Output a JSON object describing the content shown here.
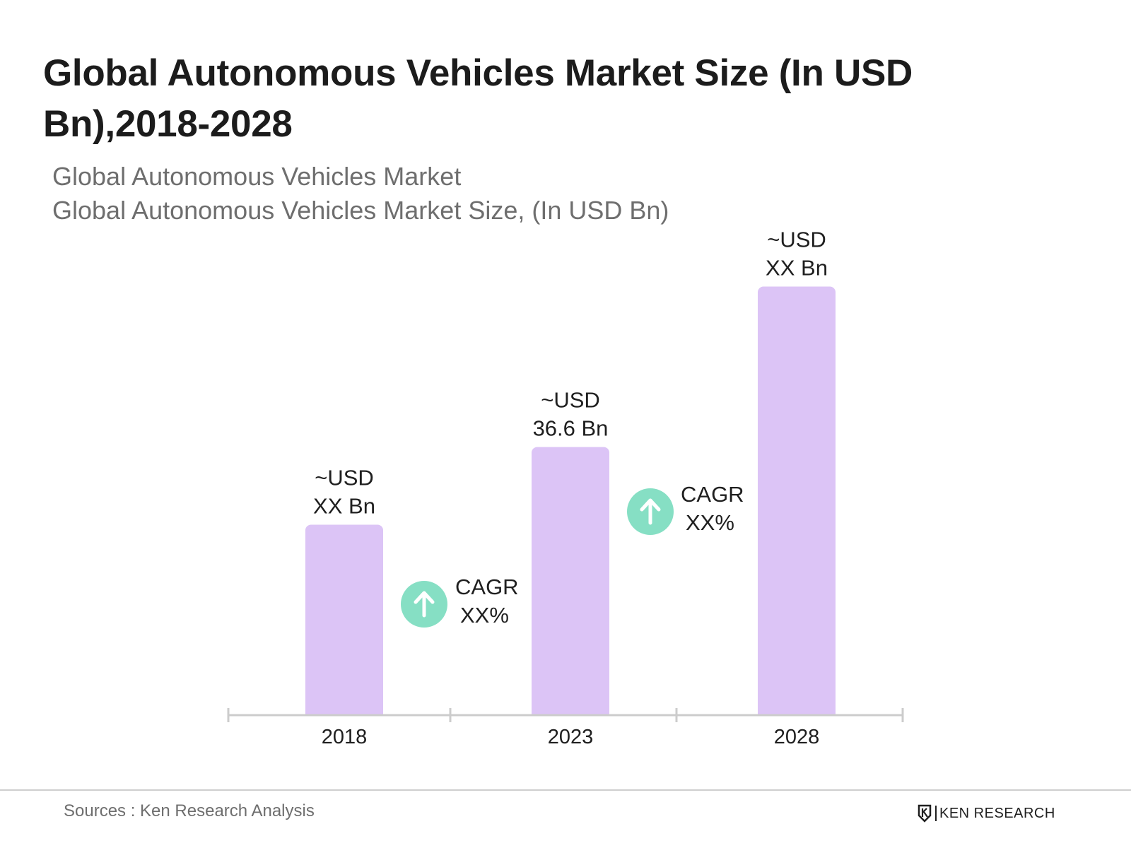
{
  "title": "Global Autonomous Vehicles Market Size (In USD Bn),2018-2028",
  "subtitle_1": "Global Autonomous Vehicles Market",
  "subtitle_2": "Global Autonomous Vehicles Market Size, (In USD Bn)",
  "chart_data": {
    "type": "bar",
    "categories": [
      "2018",
      "2023",
      "2028"
    ],
    "values": [
      26.0,
      36.6,
      58.5
    ],
    "value_labels": [
      [
        "~USD",
        "XX Bn"
      ],
      [
        "~USD",
        "36.6 Bn"
      ],
      [
        "~USD",
        "XX Bn"
      ]
    ],
    "cagr_callouts": [
      {
        "line1": "CAGR",
        "line2": "XX%",
        "period": "2018-2023"
      },
      {
        "line1": "CAGR",
        "line2": "XX%",
        "period": "2023-2028"
      }
    ],
    "ylim": [
      0,
      60
    ],
    "grid": false,
    "colors": {
      "bar": "#dcc4f6",
      "cagr_icon": "#86dfc4",
      "axis": "#cccccc"
    },
    "icons": {
      "cagr": "arrow-up-icon"
    }
  },
  "footer": {
    "source": "Sources : Ken Research Analysis",
    "logo_text": "KEN RESEARCH"
  }
}
